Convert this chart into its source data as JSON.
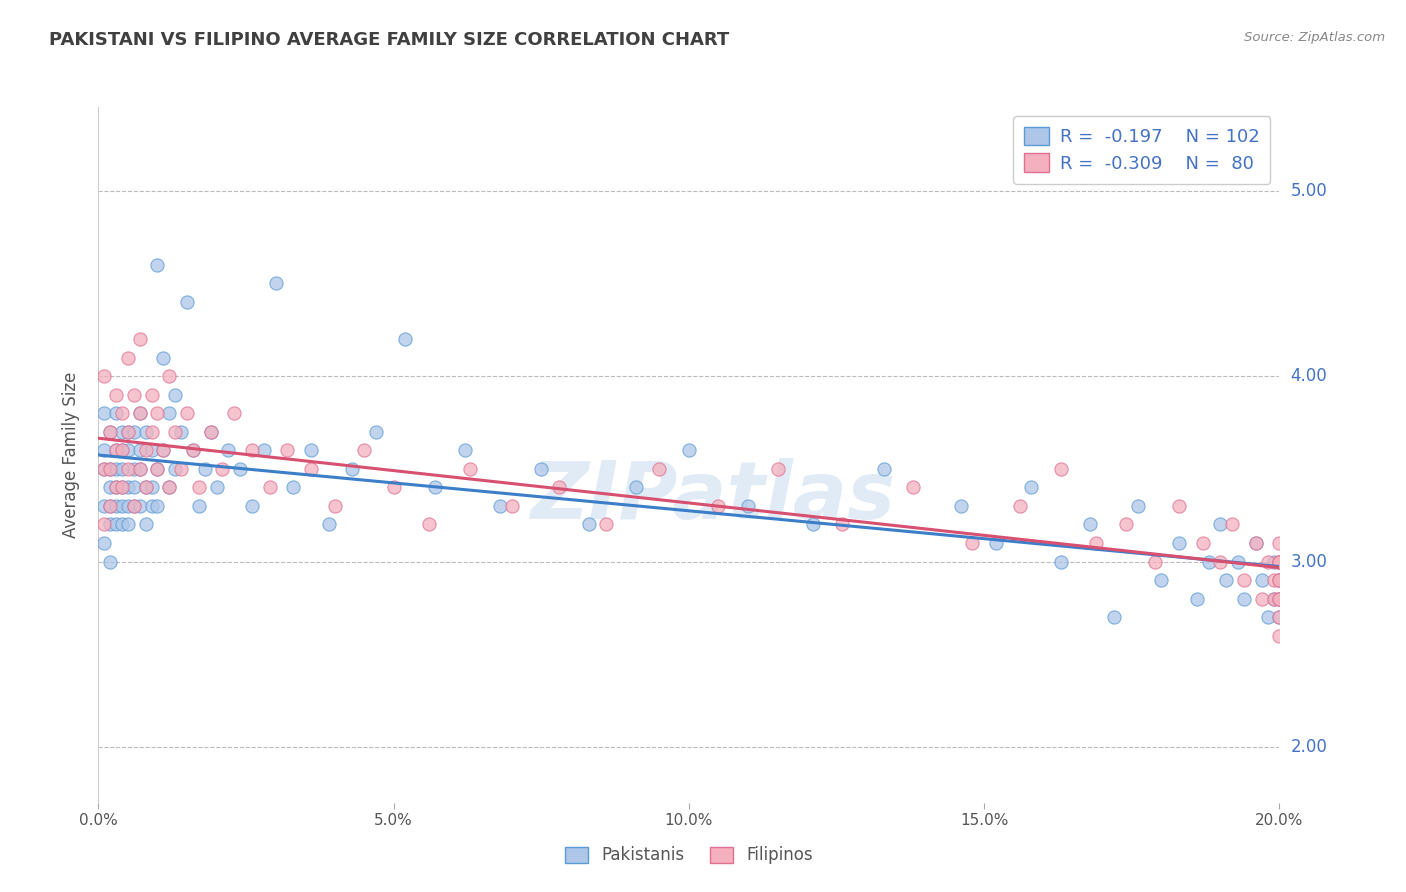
{
  "title": "PAKISTANI VS FILIPINO AVERAGE FAMILY SIZE CORRELATION CHART",
  "source": "Source: ZipAtlas.com",
  "ylabel": "Average Family Size",
  "xlim": [
    0.0,
    0.2
  ],
  "ylim": [
    1.7,
    5.45
  ],
  "yticks": [
    2.0,
    3.0,
    4.0,
    5.0
  ],
  "xticks": [
    0.0,
    0.05,
    0.1,
    0.15,
    0.2
  ],
  "xtick_labels": [
    "0.0%",
    "5.0%",
    "10.0%",
    "15.0%",
    "20.0%"
  ],
  "ytick_labels_right": [
    "2.00",
    "3.00",
    "4.00",
    "5.00"
  ],
  "pakistani_color": "#aec6e8",
  "filipino_color": "#f4b0be",
  "pakistani_edge_color": "#5b9bd5",
  "filipino_edge_color": "#e07090",
  "pakistani_line_color": "#3c7ec8",
  "filipino_line_color": "#d85070",
  "legend_R_pakistani": "-0.197",
  "legend_N_pakistani": "102",
  "legend_R_filipino": "-0.309",
  "legend_N_filipino": "80",
  "watermark": "ZIPatlas",
  "background_color": "#ffffff",
  "grid_color": "#bbbbbb",
  "title_color": "#404040",
  "right_axis_color": "#4472c4",
  "pakistani_data_x": [
    0.001,
    0.001,
    0.001,
    0.001,
    0.001,
    0.002,
    0.002,
    0.002,
    0.002,
    0.002,
    0.002,
    0.003,
    0.003,
    0.003,
    0.003,
    0.003,
    0.003,
    0.004,
    0.004,
    0.004,
    0.004,
    0.004,
    0.004,
    0.005,
    0.005,
    0.005,
    0.005,
    0.005,
    0.006,
    0.006,
    0.006,
    0.006,
    0.007,
    0.007,
    0.007,
    0.007,
    0.008,
    0.008,
    0.008,
    0.009,
    0.009,
    0.009,
    0.01,
    0.01,
    0.01,
    0.011,
    0.011,
    0.012,
    0.012,
    0.013,
    0.013,
    0.014,
    0.015,
    0.016,
    0.017,
    0.018,
    0.019,
    0.02,
    0.022,
    0.024,
    0.026,
    0.028,
    0.03,
    0.033,
    0.036,
    0.039,
    0.043,
    0.047,
    0.052,
    0.057,
    0.062,
    0.068,
    0.075,
    0.083,
    0.091,
    0.1,
    0.11,
    0.121,
    0.133,
    0.146,
    0.152,
    0.158,
    0.163,
    0.168,
    0.172,
    0.176,
    0.18,
    0.183,
    0.186,
    0.188,
    0.19,
    0.191,
    0.193,
    0.194,
    0.196,
    0.197,
    0.198,
    0.199,
    0.199,
    0.2,
    0.2,
    0.2
  ],
  "pakistani_data_y": [
    3.3,
    3.5,
    3.1,
    3.6,
    3.8,
    3.2,
    3.4,
    3.7,
    3.0,
    3.3,
    3.5,
    3.4,
    3.6,
    3.2,
    3.8,
    3.3,
    3.5,
    3.6,
    3.3,
    3.7,
    3.4,
    3.2,
    3.5,
    3.7,
    3.4,
    3.3,
    3.6,
    3.2,
    3.5,
    3.7,
    3.3,
    3.4,
    3.6,
    3.8,
    3.3,
    3.5,
    3.7,
    3.4,
    3.2,
    3.6,
    3.4,
    3.3,
    4.6,
    3.5,
    3.3,
    4.1,
    3.6,
    3.8,
    3.4,
    3.9,
    3.5,
    3.7,
    4.4,
    3.6,
    3.3,
    3.5,
    3.7,
    3.4,
    3.6,
    3.5,
    3.3,
    3.6,
    4.5,
    3.4,
    3.6,
    3.2,
    3.5,
    3.7,
    4.2,
    3.4,
    3.6,
    3.3,
    3.5,
    3.2,
    3.4,
    3.6,
    3.3,
    3.2,
    3.5,
    3.3,
    3.1,
    3.4,
    3.0,
    3.2,
    2.7,
    3.3,
    2.9,
    3.1,
    2.8,
    3.0,
    3.2,
    2.9,
    3.0,
    2.8,
    3.1,
    2.9,
    2.7,
    3.0,
    2.8,
    2.9,
    2.7,
    2.8
  ],
  "filipino_data_x": [
    0.001,
    0.001,
    0.001,
    0.002,
    0.002,
    0.002,
    0.003,
    0.003,
    0.003,
    0.004,
    0.004,
    0.004,
    0.005,
    0.005,
    0.005,
    0.006,
    0.006,
    0.007,
    0.007,
    0.007,
    0.008,
    0.008,
    0.009,
    0.009,
    0.01,
    0.01,
    0.011,
    0.012,
    0.012,
    0.013,
    0.014,
    0.015,
    0.016,
    0.017,
    0.019,
    0.021,
    0.023,
    0.026,
    0.029,
    0.032,
    0.036,
    0.04,
    0.045,
    0.05,
    0.056,
    0.063,
    0.07,
    0.078,
    0.086,
    0.095,
    0.105,
    0.115,
    0.126,
    0.138,
    0.148,
    0.156,
    0.163,
    0.169,
    0.174,
    0.179,
    0.183,
    0.187,
    0.19,
    0.192,
    0.194,
    0.196,
    0.197,
    0.198,
    0.199,
    0.199,
    0.2,
    0.2,
    0.2,
    0.2,
    0.2,
    0.2,
    0.2,
    0.2,
    0.2,
    0.2
  ],
  "filipino_data_y": [
    3.5,
    3.2,
    4.0,
    3.7,
    3.3,
    3.5,
    3.9,
    3.4,
    3.6,
    3.8,
    3.4,
    3.6,
    4.1,
    3.5,
    3.7,
    3.9,
    3.3,
    3.8,
    3.5,
    4.2,
    3.6,
    3.4,
    3.9,
    3.7,
    3.5,
    3.8,
    3.6,
    3.4,
    4.0,
    3.7,
    3.5,
    3.8,
    3.6,
    3.4,
    3.7,
    3.5,
    3.8,
    3.6,
    3.4,
    3.6,
    3.5,
    3.3,
    3.6,
    3.4,
    3.2,
    3.5,
    3.3,
    3.4,
    3.2,
    3.5,
    3.3,
    3.5,
    3.2,
    3.4,
    3.1,
    3.3,
    3.5,
    3.1,
    3.2,
    3.0,
    3.3,
    3.1,
    3.0,
    3.2,
    2.9,
    3.1,
    2.8,
    3.0,
    2.9,
    2.8,
    3.1,
    2.9,
    3.0,
    2.8,
    2.9,
    2.7,
    3.0,
    2.8,
    2.6,
    3.0
  ]
}
